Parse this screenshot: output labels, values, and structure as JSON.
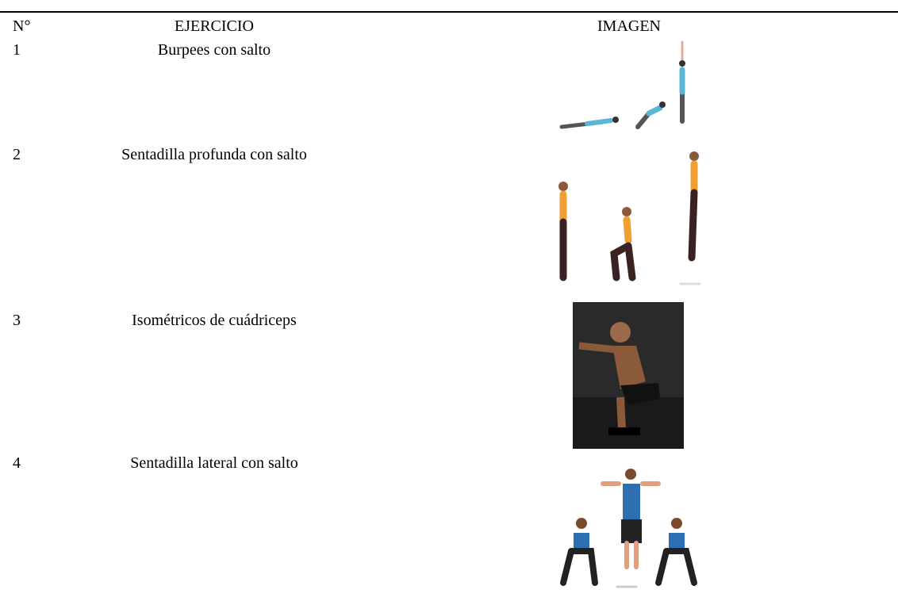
{
  "table": {
    "header": [
      "N°",
      "EJERCICIO",
      "IMAGEN"
    ],
    "rows": [
      [
        "1",
        "Burpees con salto"
      ],
      [
        "2",
        "Sentadilla profunda con salto"
      ],
      [
        "3",
        "Isométricos de cuádriceps"
      ],
      [
        "4",
        "Sentadilla lateral con salto"
      ]
    ]
  }
}
